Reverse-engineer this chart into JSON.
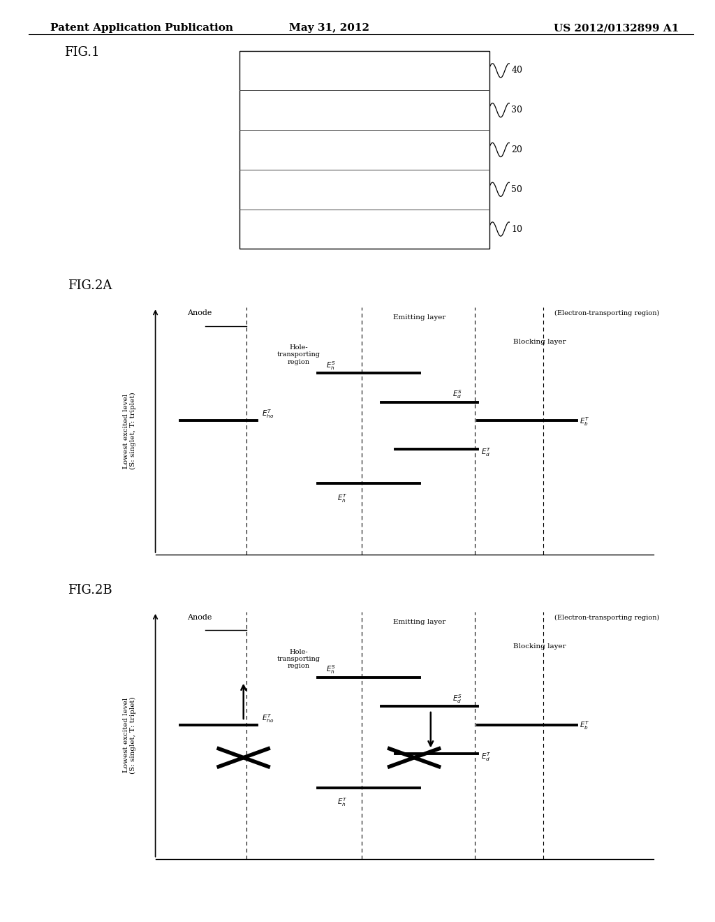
{
  "bg_color": "#ffffff",
  "header_left": "Patent Application Publication",
  "header_center": "May 31, 2012",
  "header_right": "US 2012/0132899 A1",
  "fig1_label": "FIG.1",
  "fig2a_label": "FIG.2A",
  "fig2b_label": "FIG.2B"
}
